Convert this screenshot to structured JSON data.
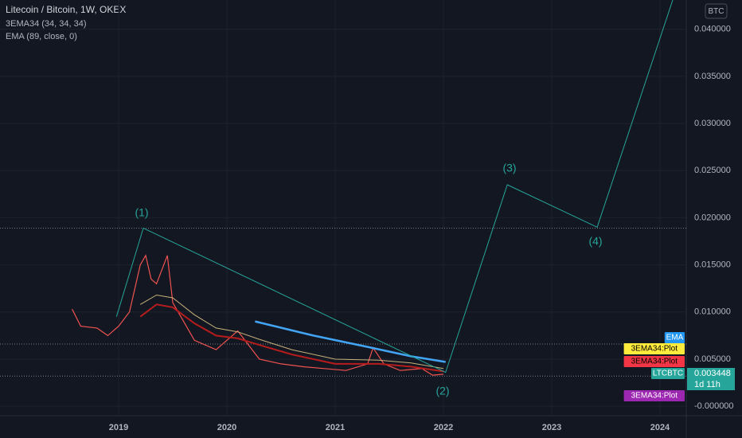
{
  "chart_data": {
    "type": "line",
    "title": "Litecoin / Bitcoin, 1W, OKEX",
    "indicators": [
      "3EMA34 (34, 34, 34)",
      "EMA (89, close, 0)"
    ],
    "currency": "BTC",
    "xlim": [
      2017.904,
      2024.243
    ],
    "xticks": [
      2019,
      2020,
      2021,
      2022,
      2023,
      2024
    ],
    "ylim": [
      -0.001,
      0.0431
    ],
    "yticks": [
      {
        "value": 0.04,
        "label": "0.040000"
      },
      {
        "value": 0.035,
        "label": "0.035000"
      },
      {
        "value": 0.03,
        "label": "0.030000"
      },
      {
        "value": 0.025,
        "label": "0.025000"
      },
      {
        "value": 0.02,
        "label": "0.020000"
      },
      {
        "value": 0.015,
        "label": "0.015000"
      },
      {
        "value": 0.01,
        "label": "0.010000"
      },
      {
        "value": 0.005,
        "label": "0.005000"
      },
      {
        "value": 0,
        "label": "-0.000000"
      }
    ],
    "hlines": [
      0.0189,
      0.0066,
      0.0032
    ],
    "series": [
      {
        "color": "#ef5350",
        "width": 1.2,
        "x": [
          2018.57,
          2018.65,
          2018.8,
          2018.9,
          2019.0,
          2019.1,
          2019.2,
          2019.25,
          2019.3,
          2019.35,
          2019.45,
          2019.5,
          2019.6,
          2019.7,
          2019.8,
          2019.9,
          2020.0,
          2020.1,
          2020.2,
          2020.3,
          2020.5,
          2020.7,
          2020.9,
          2021.1,
          2021.3,
          2021.35,
          2021.45,
          2021.6,
          2021.8,
          2021.9,
          2022.0
        ],
        "values": [
          0.0103,
          0.0085,
          0.0083,
          0.0075,
          0.0085,
          0.01,
          0.015,
          0.016,
          0.0135,
          0.013,
          0.016,
          0.011,
          0.009,
          0.007,
          0.0065,
          0.006,
          0.007,
          0.008,
          0.0065,
          0.005,
          0.0045,
          0.0042,
          0.004,
          0.0038,
          0.0045,
          0.0062,
          0.0045,
          0.0038,
          0.004,
          0.0033,
          0.0034
        ]
      },
      {
        "color": "#b71c1c",
        "width": 2,
        "x": [
          2019.2,
          2019.35,
          2019.5,
          2019.7,
          2019.9,
          2020.1,
          2020.3,
          2020.6,
          2021.0,
          2021.4,
          2021.7,
          2022.0
        ],
        "values": [
          0.0095,
          0.0108,
          0.0105,
          0.0088,
          0.0075,
          0.0072,
          0.0065,
          0.0055,
          0.0045,
          0.0045,
          0.0042,
          0.0037
        ]
      },
      {
        "color": "#c8b27a",
        "width": 1,
        "x": [
          2019.2,
          2019.35,
          2019.5,
          2019.7,
          2019.9,
          2020.1,
          2020.3,
          2020.6,
          2021.0,
          2021.4,
          2021.7,
          2022.0
        ],
        "values": [
          0.0108,
          0.0118,
          0.0115,
          0.0097,
          0.0083,
          0.0079,
          0.0071,
          0.006,
          0.005,
          0.0049,
          0.0046,
          0.004
        ]
      },
      {
        "color": "#42a5f5",
        "width": 2.5,
        "x": [
          2020.26,
          2020.8,
          2021.3,
          2021.7,
          2022.02
        ],
        "values": [
          0.009,
          0.0075,
          0.0063,
          0.0053,
          0.0047
        ]
      },
      {
        "color": "#26a69a",
        "width": 1,
        "x": [
          2018.98,
          2019.228,
          2022.02,
          2022.59,
          2023.42,
          2024.118
        ],
        "values": [
          0.0095,
          0.0189,
          0.0036,
          0.0235,
          0.019,
          0.0431
        ]
      }
    ],
    "annotations": [
      "(1)",
      "(2)",
      "(3)",
      "(4)"
    ],
    "right_labels": [
      {
        "text": "EMA",
        "color": "#2196f3",
        "fg": "#ffffff"
      },
      {
        "text": "3EMA34:Plot",
        "color": "#ffeb3b",
        "fg": "#000000"
      },
      {
        "text": "3EMA34:Plot",
        "color": "#f23645",
        "fg": "#000000"
      },
      {
        "text": "LTCBTC",
        "color": "#26a69a",
        "fg": "#ffffff"
      },
      {
        "text": "3EMA34:Plot",
        "color": "#9c27b0",
        "fg": "#ffffff"
      }
    ],
    "last_price": "0.003448",
    "countdown": "1d 11h"
  }
}
